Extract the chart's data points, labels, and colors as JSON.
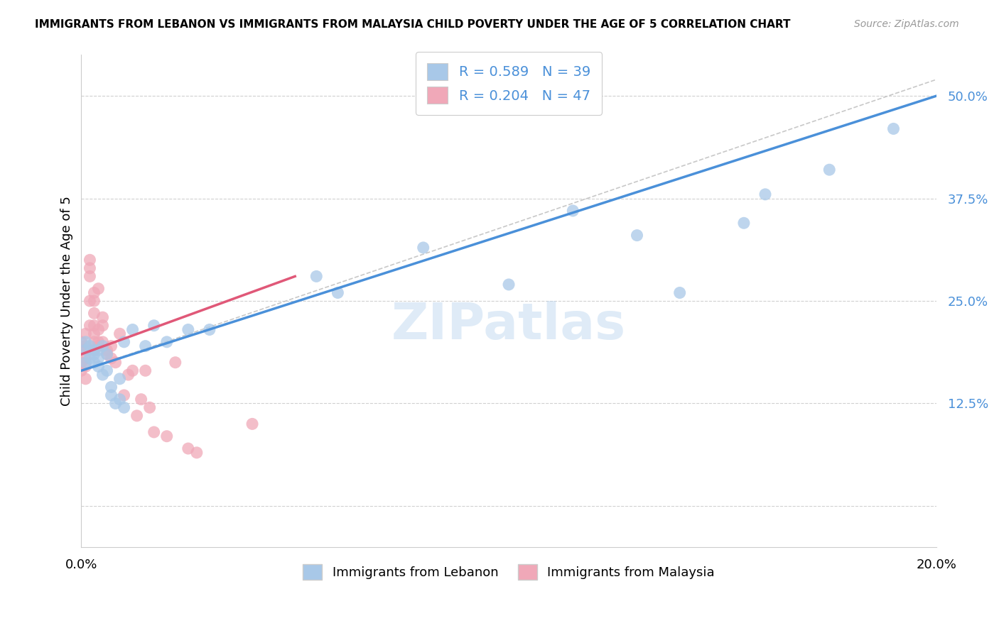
{
  "title": "IMMIGRANTS FROM LEBANON VS IMMIGRANTS FROM MALAYSIA CHILD POVERTY UNDER THE AGE OF 5 CORRELATION CHART",
  "source": "Source: ZipAtlas.com",
  "ylabel": "Child Poverty Under the Age of 5",
  "xlim": [
    0.0,
    0.2
  ],
  "ylim": [
    -0.05,
    0.55
  ],
  "ytick_positions": [
    0.0,
    0.125,
    0.25,
    0.375,
    0.5
  ],
  "yticklabels": [
    "",
    "12.5%",
    "25.0%",
    "37.5%",
    "50.0%"
  ],
  "R_lebanon": 0.589,
  "N_lebanon": 39,
  "R_malaysia": 0.204,
  "N_malaysia": 47,
  "color_lebanon": "#a8c8e8",
  "color_malaysia": "#f0a8b8",
  "line_color_lebanon": "#4a90d9",
  "line_color_malaysia": "#e05878",
  "dashed_line_color": "#c8c8c8",
  "watermark": "ZIPatlas",
  "lebanon_x": [
    0.001,
    0.001,
    0.001,
    0.002,
    0.002,
    0.003,
    0.003,
    0.003,
    0.004,
    0.004,
    0.004,
    0.005,
    0.005,
    0.006,
    0.006,
    0.007,
    0.007,
    0.008,
    0.009,
    0.009,
    0.01,
    0.01,
    0.012,
    0.015,
    0.017,
    0.02,
    0.025,
    0.03,
    0.055,
    0.06,
    0.08,
    0.1,
    0.115,
    0.13,
    0.14,
    0.155,
    0.16,
    0.175,
    0.19
  ],
  "lebanon_y": [
    0.2,
    0.19,
    0.175,
    0.18,
    0.195,
    0.19,
    0.175,
    0.185,
    0.17,
    0.19,
    0.18,
    0.195,
    0.16,
    0.185,
    0.165,
    0.145,
    0.135,
    0.125,
    0.13,
    0.155,
    0.12,
    0.2,
    0.215,
    0.195,
    0.22,
    0.2,
    0.215,
    0.215,
    0.28,
    0.26,
    0.315,
    0.27,
    0.36,
    0.33,
    0.26,
    0.345,
    0.38,
    0.41,
    0.46
  ],
  "malaysia_x": [
    0.0,
    0.0,
    0.0,
    0.0,
    0.001,
    0.001,
    0.001,
    0.001,
    0.001,
    0.002,
    0.002,
    0.002,
    0.002,
    0.002,
    0.003,
    0.003,
    0.003,
    0.003,
    0.003,
    0.003,
    0.003,
    0.004,
    0.004,
    0.004,
    0.004,
    0.005,
    0.005,
    0.005,
    0.006,
    0.006,
    0.007,
    0.007,
    0.008,
    0.009,
    0.01,
    0.011,
    0.012,
    0.013,
    0.014,
    0.015,
    0.016,
    0.017,
    0.02,
    0.022,
    0.025,
    0.027,
    0.04
  ],
  "malaysia_y": [
    0.19,
    0.2,
    0.175,
    0.165,
    0.18,
    0.195,
    0.21,
    0.17,
    0.155,
    0.3,
    0.29,
    0.28,
    0.25,
    0.22,
    0.26,
    0.25,
    0.235,
    0.22,
    0.21,
    0.2,
    0.19,
    0.265,
    0.215,
    0.2,
    0.195,
    0.23,
    0.22,
    0.2,
    0.19,
    0.185,
    0.195,
    0.18,
    0.175,
    0.21,
    0.135,
    0.16,
    0.165,
    0.11,
    0.13,
    0.165,
    0.12,
    0.09,
    0.085,
    0.175,
    0.07,
    0.065,
    0.1
  ]
}
